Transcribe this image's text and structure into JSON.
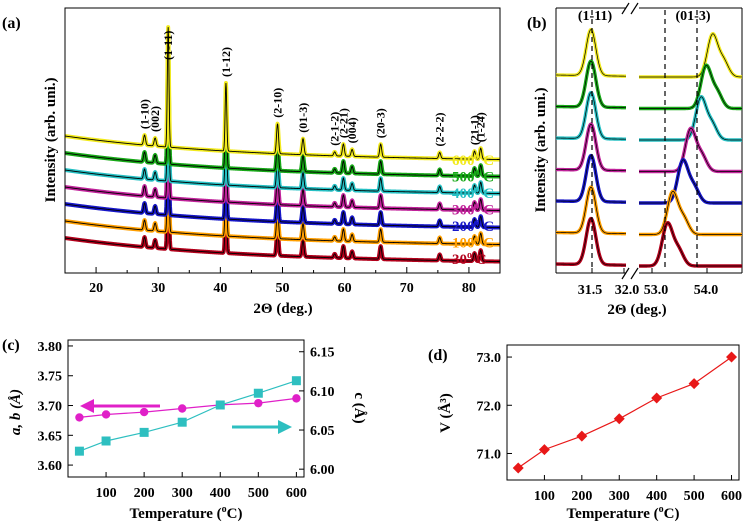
{
  "panels": {
    "a": {
      "label": "(a)",
      "xlabel": "2Θ (deg.)",
      "ylabel": "Intensity (arb. uni.)",
      "xticks": [
        "20",
        "30",
        "40",
        "50",
        "60",
        "70",
        "80"
      ]
    },
    "b": {
      "label": "(b)",
      "xlabel": "2Θ (deg.)",
      "ylabel": "Intensity (arb. uni.)",
      "left_title": "(1-11)",
      "right_title": "(01-3)",
      "left_ticks": [
        "31.5",
        "32.0"
      ],
      "right_ticks": [
        "53.0",
        "54.0"
      ]
    },
    "c": {
      "label": "(c)",
      "xlabel": "Temperature (°C)",
      "ylabel_left": "a, b (Å)",
      "ylabel_right": "c (Å)",
      "xticks": [
        "100",
        "200",
        "300",
        "400",
        "500",
        "600"
      ],
      "yticks_left": [
        "3.60",
        "3.65",
        "3.70",
        "3.75",
        "3.80"
      ],
      "yticks_right": [
        "6.00",
        "6.05",
        "6.10",
        "6.15"
      ]
    },
    "d": {
      "label": "(d)",
      "xlabel": "Temperature (°C)",
      "ylabel": "V (Å³)",
      "xticks": [
        "100",
        "200",
        "300",
        "400",
        "500",
        "600"
      ],
      "yticks": [
        "71.0",
        "72.0",
        "73.0"
      ]
    }
  },
  "chart_data": [
    {
      "type": "line",
      "title": "(a)",
      "xlabel": "2Θ (deg.)",
      "ylabel": "Intensity (arb. uni.)",
      "xlim": [
        15,
        85
      ],
      "series": [
        {
          "name": "30° C",
          "color": "#b3001b",
          "offset": 0
        },
        {
          "name": "100° C",
          "color": "#ff9f00",
          "offset": 1
        },
        {
          "name": "200° C",
          "color": "#1616c8",
          "offset": 2
        },
        {
          "name": "300° C",
          "color": "#c0229a",
          "offset": 3
        },
        {
          "name": "400° C",
          "color": "#26c0c4",
          "offset": 4
        },
        {
          "name": "500° C",
          "color": "#17a817",
          "offset": 5
        },
        {
          "name": "600° C",
          "color": "#f2ea1d",
          "offset": 6
        }
      ],
      "peaks": [
        {
          "label": "(1-10)",
          "x": 27.8,
          "h": 10
        },
        {
          "label": "(002)",
          "x": 29.5,
          "h": 8
        },
        {
          "label": "(1-11)",
          "x": 31.6,
          "h": 120
        },
        {
          "label": "(1-12)",
          "x": 40.9,
          "h": 68
        },
        {
          "label": "(2-10)",
          "x": 49.2,
          "h": 30
        },
        {
          "label": "(01-3)",
          "x": 53.3,
          "h": 16
        },
        {
          "label": "(2-1-2)",
          "x": 58.4,
          "h": 4
        },
        {
          "label": "(2-21)",
          "x": 59.8,
          "h": 12
        },
        {
          "label": "(004)",
          "x": 61.2,
          "h": 7
        },
        {
          "label": "(20-3)",
          "x": 65.8,
          "h": 13
        },
        {
          "label": "(2-2-2)",
          "x": 75.3,
          "h": 6
        },
        {
          "label": "(21-1)",
          "x": 80.9,
          "h": 8
        },
        {
          "label": "(1-24)",
          "x": 81.9,
          "h": 11
        }
      ]
    },
    {
      "type": "line",
      "title": "(b)",
      "xlabel": "2Θ (deg.)",
      "ylabel": "Intensity (arb. uni.)",
      "left_range": [
        31.2,
        32.0
      ],
      "right_range": [
        52.8,
        54.4
      ],
      "left_peak": 31.6,
      "right_peak_by_series": [
        53.24,
        53.32,
        53.48,
        53.6,
        53.76,
        53.84,
        53.94
      ],
      "series_order_top_to_bottom": [
        "600° C",
        "500° C",
        "400° C",
        "300° C",
        "200° C",
        "100° C",
        "30° C"
      ]
    },
    {
      "type": "scatter",
      "title": "(c)",
      "xlabel": "Temperature (°C)",
      "ylabel": "a, b (Å)",
      "y2label": "c (Å)",
      "xlim": [
        0,
        620
      ],
      "ylim": [
        3.58,
        3.81
      ],
      "y2lim": [
        5.99,
        6.165
      ],
      "x": [
        30,
        100,
        200,
        300,
        400,
        500,
        600
      ],
      "series": [
        {
          "name": "a, b",
          "axis": "left",
          "color": "#e020c8",
          "values": [
            3.68,
            3.685,
            3.689,
            3.695,
            3.701,
            3.704,
            3.712
          ]
        },
        {
          "name": "c",
          "axis": "right",
          "color": "#2ebfc0",
          "values": [
            6.023,
            6.036,
            6.047,
            6.06,
            6.082,
            6.097,
            6.113
          ]
        }
      ]
    },
    {
      "type": "line",
      "title": "(d)",
      "xlabel": "Temperature (°C)",
      "ylabel": "V (Å³)",
      "xlim": [
        0,
        620
      ],
      "ylim": [
        70.45,
        73.25
      ],
      "x": [
        30,
        100,
        200,
        300,
        400,
        500,
        600
      ],
      "series": [
        {
          "name": "V",
          "color": "#e81818",
          "values": [
            70.7,
            71.08,
            71.36,
            71.72,
            72.15,
            72.45,
            73.0
          ]
        }
      ]
    }
  ]
}
